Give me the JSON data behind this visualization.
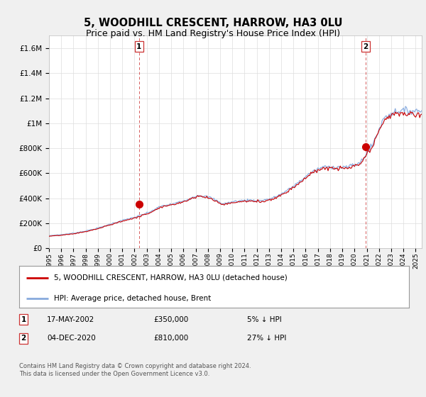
{
  "title": "5, WOODHILL CRESCENT, HARROW, HA3 0LU",
  "subtitle": "Price paid vs. HM Land Registry's House Price Index (HPI)",
  "title_fontsize": 10.5,
  "subtitle_fontsize": 9,
  "ylabel_ticks": [
    "£0",
    "£200K",
    "£400K",
    "£600K",
    "£800K",
    "£1M",
    "£1.2M",
    "£1.4M",
    "£1.6M"
  ],
  "ytick_values": [
    0,
    200000,
    400000,
    600000,
    800000,
    1000000,
    1200000,
    1400000,
    1600000
  ],
  "ylim": [
    0,
    1700000
  ],
  "xlim_start": 1995.0,
  "xlim_end": 2025.5,
  "red_line_color": "#cc0000",
  "blue_line_color": "#88aadd",
  "fill_color": "#ddeeff",
  "marker_color": "#cc0000",
  "dashed_line_color": "#cc3333",
  "background_color": "#f0f0f0",
  "plot_bg_color": "#ffffff",
  "grid_color": "#dddddd",
  "transaction_1": {
    "label": "1",
    "date": "17-MAY-2002",
    "price": "£350,000",
    "hpi": "5% ↓ HPI",
    "x": 2002.37
  },
  "transaction_2": {
    "label": "2",
    "date": "04-DEC-2020",
    "price": "£810,000",
    "hpi": "27% ↓ HPI",
    "x": 2020.92
  },
  "t1_y": 350000,
  "t2_y": 810000,
  "legend_line1": "5, WOODHILL CRESCENT, HARROW, HA3 0LU (detached house)",
  "legend_line2": "HPI: Average price, detached house, Brent",
  "footer": "Contains HM Land Registry data © Crown copyright and database right 2024.\nThis data is licensed under the Open Government Licence v3.0."
}
